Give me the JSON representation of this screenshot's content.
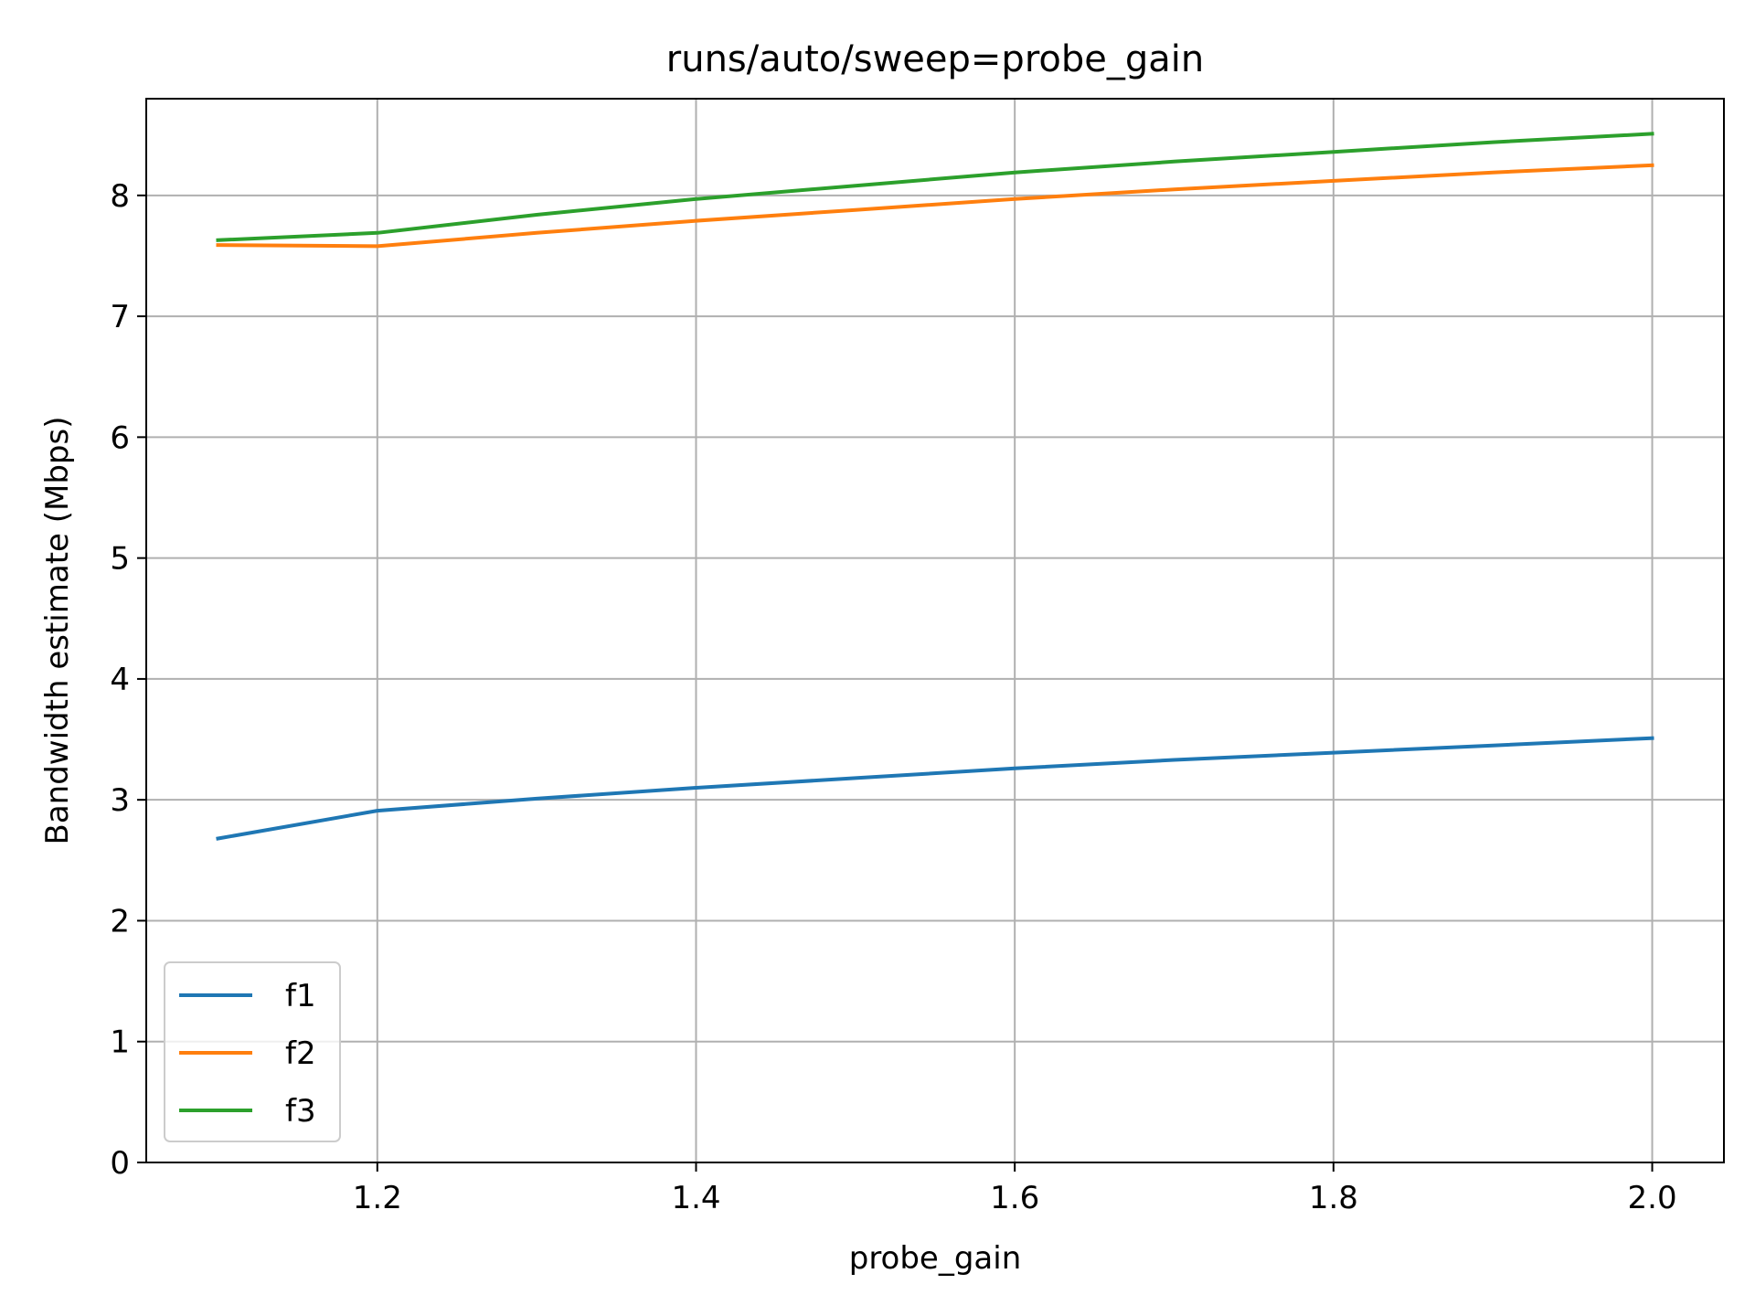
{
  "chart_data": {
    "type": "line",
    "title": "runs/auto/sweep=probe_gain",
    "xlabel": "probe_gain",
    "ylabel": "Bandwidth estimate (Mbps)",
    "x": [
      1.1,
      1.2,
      1.3,
      1.4,
      1.5,
      1.6,
      1.7,
      1.8,
      1.9,
      2.0
    ],
    "xlim": [
      1.055,
      2.045
    ],
    "ylim": [
      0,
      8.8
    ],
    "xticks": [
      1.2,
      1.4,
      1.6,
      1.8,
      2.0
    ],
    "xtick_labels": [
      "1.2",
      "1.4",
      "1.6",
      "1.8",
      "2.0"
    ],
    "yticks": [
      0,
      1,
      2,
      3,
      4,
      5,
      6,
      7,
      8
    ],
    "ytick_labels": [
      "0",
      "1",
      "2",
      "3",
      "4",
      "5",
      "6",
      "7",
      "8"
    ],
    "grid": true,
    "legend_position": "lower-left",
    "series": [
      {
        "name": "f1",
        "color": "#1f77b4",
        "values": [
          2.68,
          2.91,
          3.01,
          3.1,
          3.18,
          3.26,
          3.33,
          3.39,
          3.45,
          3.51
        ]
      },
      {
        "name": "f2",
        "color": "#ff7f0e",
        "values": [
          7.59,
          7.58,
          7.69,
          7.79,
          7.88,
          7.97,
          8.05,
          8.12,
          8.19,
          8.25
        ]
      },
      {
        "name": "f3",
        "color": "#2ca02c",
        "values": [
          7.63,
          7.69,
          7.84,
          7.97,
          8.08,
          8.19,
          8.28,
          8.36,
          8.44,
          8.51
        ]
      }
    ]
  }
}
